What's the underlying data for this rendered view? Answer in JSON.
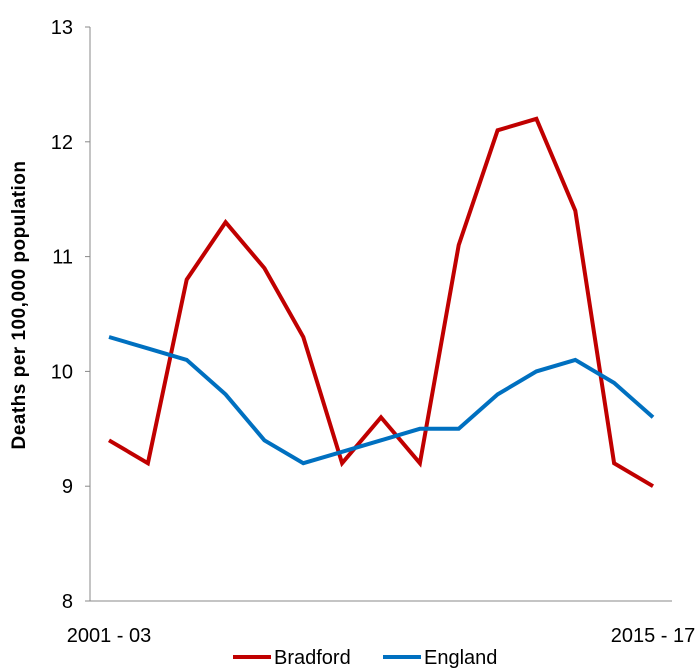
{
  "chart_data": {
    "type": "line",
    "ylabel": "Deaths per 100,000 population",
    "ylim": [
      8,
      13
    ],
    "yticks": [
      8,
      9,
      10,
      11,
      12,
      13
    ],
    "x_tick_labels": [
      "2001 - 03",
      "2015 - 17"
    ],
    "x_count": 15,
    "grid": false,
    "legend_position": "bottom",
    "series": [
      {
        "name": "Bradford",
        "color": "#c00000",
        "values": [
          9.4,
          9.2,
          10.8,
          11.3,
          10.9,
          10.3,
          9.2,
          9.6,
          9.2,
          11.1,
          12.1,
          12.2,
          11.4,
          9.2,
          9.0
        ]
      },
      {
        "name": "England",
        "color": "#0070c0",
        "values": [
          10.3,
          10.2,
          10.1,
          9.8,
          9.4,
          9.2,
          9.3,
          9.4,
          9.5,
          9.5,
          9.8,
          10.0,
          10.1,
          9.9,
          9.6
        ]
      }
    ]
  }
}
